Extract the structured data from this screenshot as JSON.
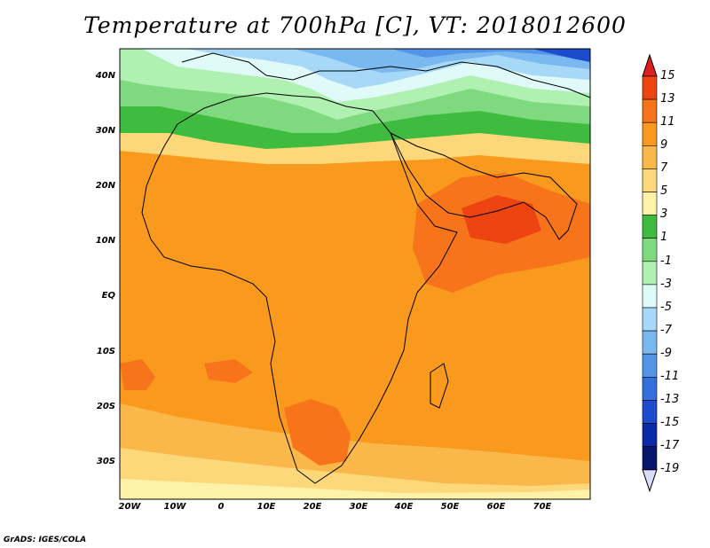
{
  "title": "Temperature at 700hPa [C], VT: 2018012600",
  "footer": "GrADS: IGES/COLA",
  "map": {
    "lon_range": [
      -23,
      80
    ],
    "lat_range": [
      -37,
      45
    ],
    "lat_ticks": [
      "40N",
      "30N",
      "20N",
      "10N",
      "EQ",
      "10S",
      "20S",
      "30S"
    ],
    "lon_ticks": [
      "20W",
      "10W",
      "0",
      "10E",
      "20E",
      "30E",
      "40E",
      "50E",
      "60E",
      "70E"
    ],
    "variable": "Temperature at 700hPa",
    "units": "C"
  },
  "colorbar": {
    "labels": [
      "15",
      "13",
      "11",
      "9",
      "7",
      "5",
      "3",
      "1",
      "-1",
      "-3",
      "-5",
      "-7",
      "-9",
      "-11",
      "-13",
      "-15",
      "-17",
      "-19"
    ],
    "colors": [
      "#dd1e1e",
      "#ee4411",
      "#f7741a",
      "#f99a1f",
      "#fbb84a",
      "#fdd87a",
      "#fef2a8",
      "#3fbb3f",
      "#7fd97f",
      "#b0f0b0",
      "#e0fafa",
      "#a8d8f8",
      "#7ab8f0",
      "#5494e8",
      "#3470dc",
      "#1c4ccc",
      "#0a2aa8",
      "#08166e",
      "#dcdcfa"
    ]
  }
}
